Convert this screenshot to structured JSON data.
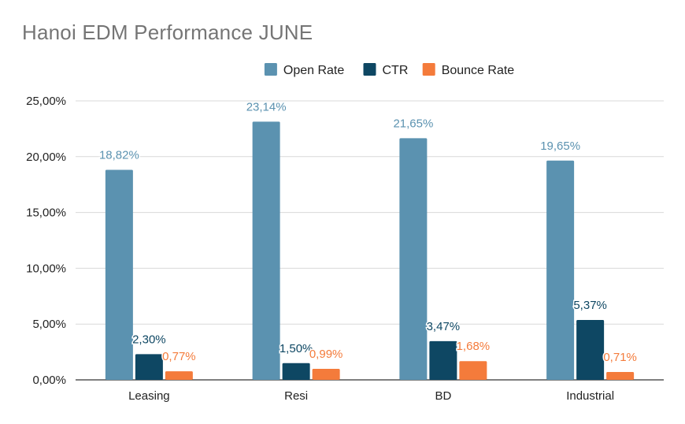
{
  "chart_data": {
    "type": "bar",
    "title": "Hanoi EDM Performance JUNE",
    "xlabel": "",
    "ylabel": "",
    "categories": [
      "Leasing",
      "Resi",
      "BD",
      "Industrial"
    ],
    "series": [
      {
        "name": "Open Rate",
        "color": "#5b92b0",
        "values": [
          18.82,
          23.14,
          21.65,
          19.65
        ],
        "labels": [
          "18,82%",
          "23,14%",
          "21,65%",
          "19,65%"
        ]
      },
      {
        "name": "CTR",
        "color": "#0e4763",
        "values": [
          2.3,
          1.5,
          3.47,
          5.37
        ],
        "labels": [
          "2,30%",
          "1,50%",
          "3,47%",
          "5,37%"
        ]
      },
      {
        "name": "Bounce Rate",
        "color": "#f47b3b",
        "values": [
          0.77,
          0.99,
          1.68,
          0.71
        ],
        "labels": [
          "0,77%",
          "0,99%",
          "1,68%",
          "0,71%"
        ]
      }
    ],
    "ylim": [
      0,
      25
    ],
    "yticks": [
      0,
      5,
      10,
      15,
      20,
      25
    ],
    "ytick_labels": [
      "0,00%",
      "5,00%",
      "10,00%",
      "15,00%",
      "20,00%",
      "25,00%"
    ],
    "grid": true,
    "legend_position": "top-center"
  }
}
